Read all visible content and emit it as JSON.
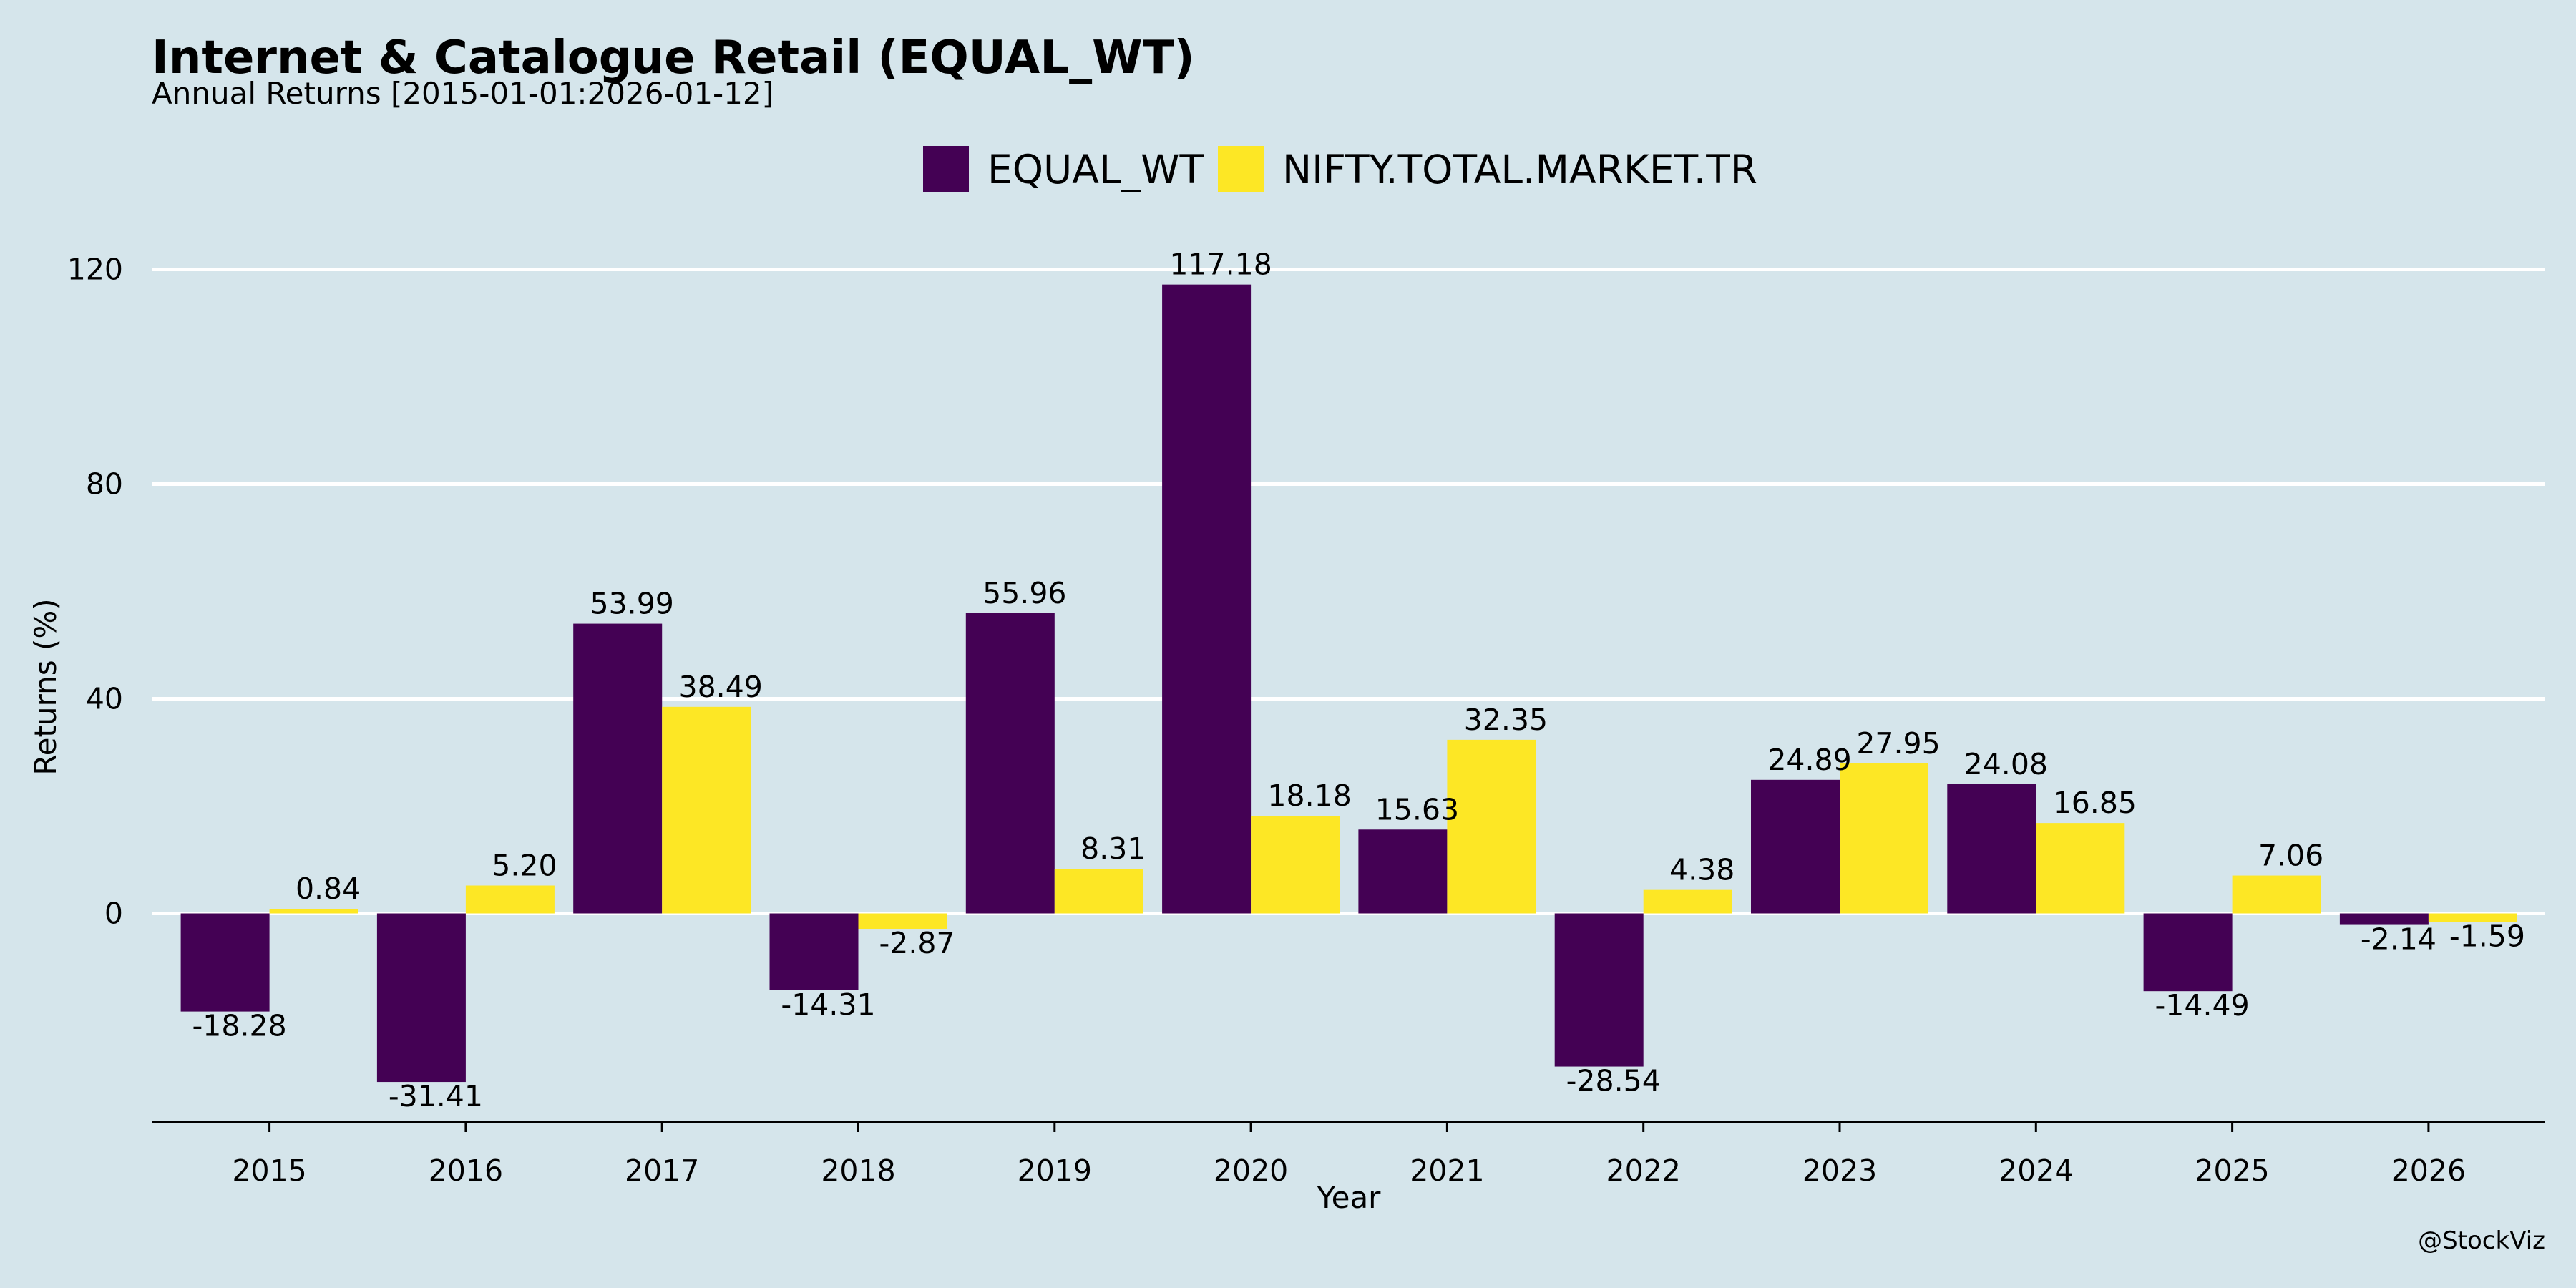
{
  "chart_data": {
    "type": "bar",
    "title": "Internet & Catalogue Retail (EQUAL_WT)",
    "subtitle": "Annual Returns [2015-01-01:2026-01-12]",
    "xlabel": "Year",
    "ylabel": "Returns (%)",
    "caption": "@StockViz",
    "categories": [
      "2015",
      "2016",
      "2017",
      "2018",
      "2019",
      "2020",
      "2021",
      "2022",
      "2023",
      "2024",
      "2025",
      "2026"
    ],
    "series": [
      {
        "name": "EQUAL_WT",
        "color": "#440154",
        "values": [
          -18.28,
          -31.41,
          53.99,
          -14.31,
          55.96,
          117.18,
          15.63,
          -28.54,
          24.89,
          24.08,
          -14.49,
          -2.14
        ]
      },
      {
        "name": "NIFTY.TOTAL.MARKET.TR",
        "color": "#fde725",
        "values": [
          0.84,
          5.2,
          38.49,
          -2.87,
          8.31,
          18.18,
          32.35,
          4.38,
          27.95,
          16.85,
          7.06,
          -1.59
        ]
      }
    ],
    "yticks": [
      0,
      40,
      80,
      120
    ],
    "ylim": [
      -38.9,
      130
    ],
    "grid": true,
    "legend": "top-center"
  }
}
